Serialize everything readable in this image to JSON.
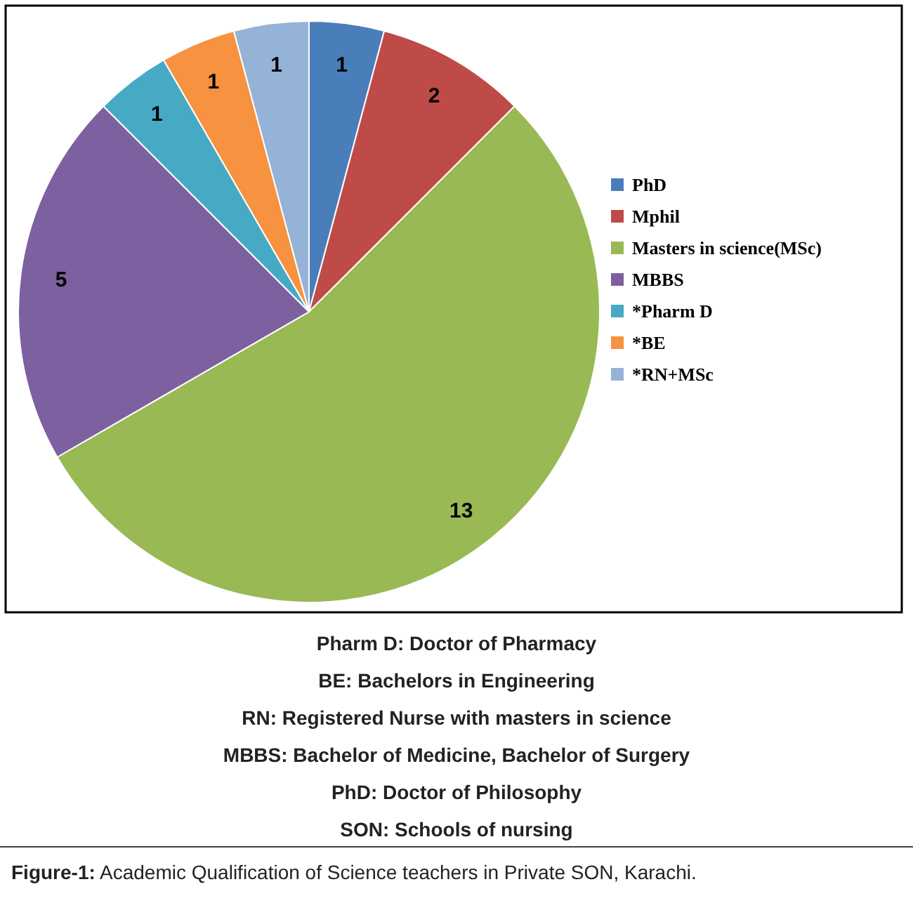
{
  "chart_data": {
    "type": "pie",
    "categories": [
      "PhD",
      "Mphil",
      "Masters in science(MSc)",
      "MBBS",
      "*Pharm D",
      "*BE",
      "*RN+MSc"
    ],
    "values": [
      1,
      2,
      13,
      5,
      1,
      1,
      1
    ],
    "colors": [
      "#4a7ebb",
      "#be4b48",
      "#98b954",
      "#7d60a0",
      "#46aac5",
      "#f69240",
      "#95b3d7"
    ],
    "data_labels": true,
    "legend": "right",
    "annotations": [
      "Pharm D: Doctor of Pharmacy",
      "BE: Bachelors in Engineering",
      "RN: Registered Nurse with masters in science",
      "MBBS: Bachelor of Medicine, Bachelor of Surgery",
      "PhD: Doctor of Philosophy",
      "SON: Schools of nursing",
      "Figure-1: Academic Qualification of Science teachers in Private SON, Karachi."
    ]
  }
}
